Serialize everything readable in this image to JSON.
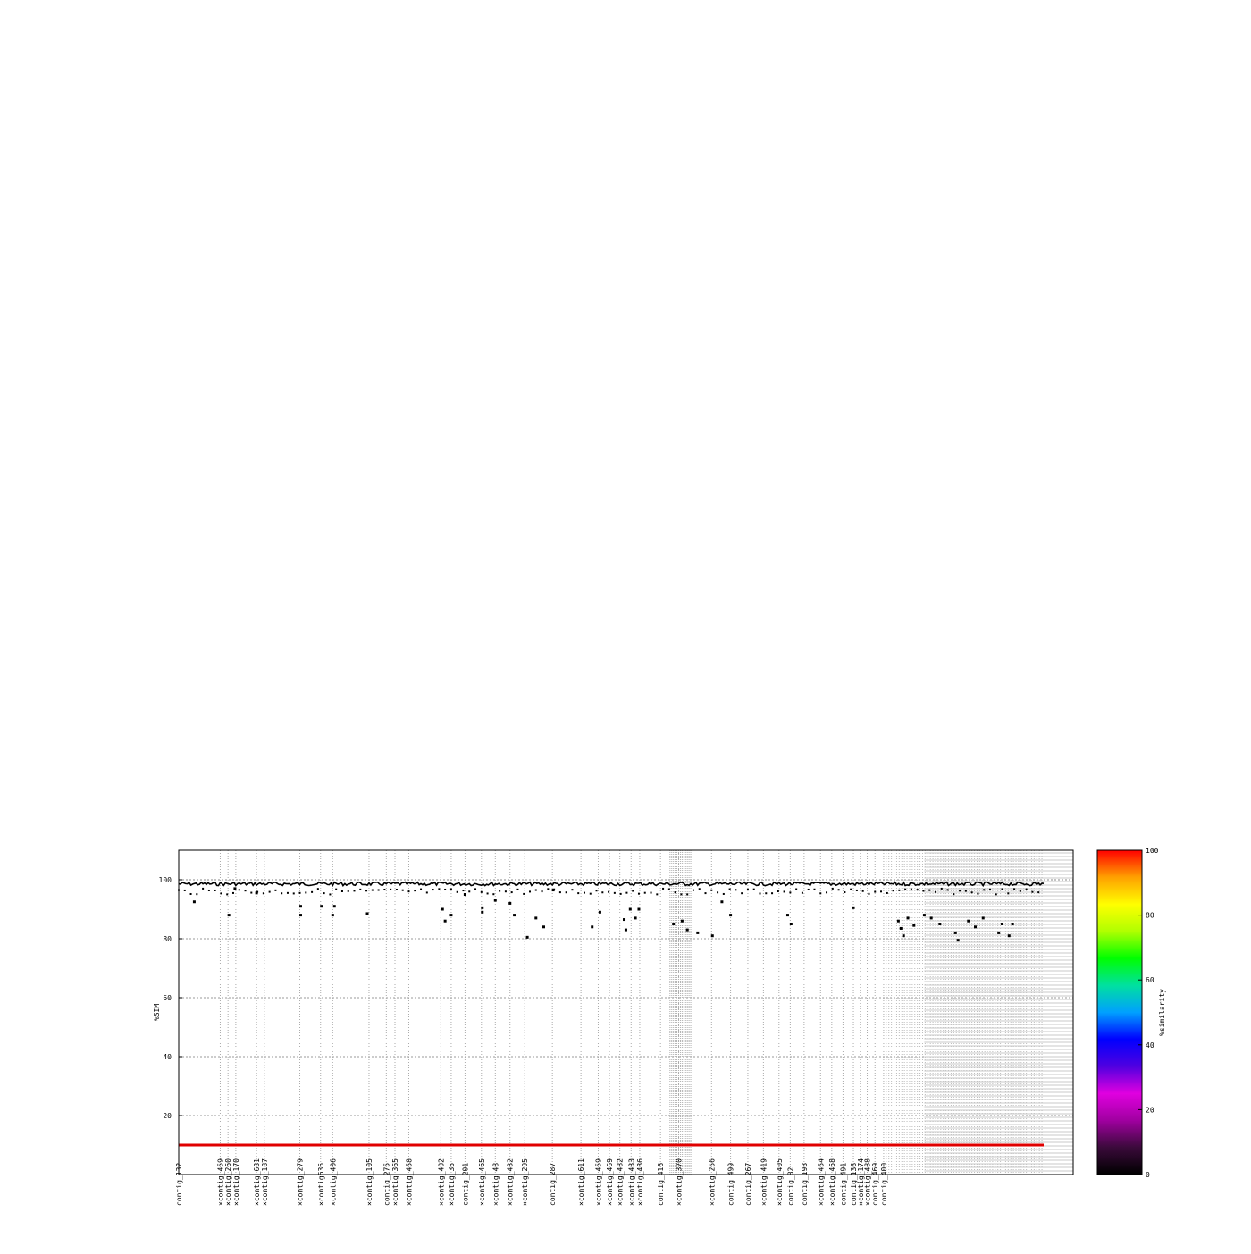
{
  "chart_data": {
    "type": "scatter",
    "title": "",
    "xlabel": "",
    "ylabel": "%SIM",
    "ylim": [
      0,
      110
    ],
    "yticks": [
      20,
      40,
      60,
      80,
      100
    ],
    "grid": true,
    "reference_line": {
      "y": 100,
      "style": "dotted"
    },
    "threshold_line": {
      "y": 10,
      "color": "#e00000"
    },
    "colorbar": {
      "label": "%similarity",
      "ticks": [
        0,
        20,
        40,
        60,
        80,
        100
      ],
      "stops": [
        "#000000",
        "#3a0a3a",
        "#a000a0",
        "#e000e0",
        "#5000e0",
        "#0000ff",
        "#00a0ff",
        "#00e0a0",
        "#00ff00",
        "#b0ff00",
        "#ffff00",
        "#ffa000",
        "#ff0000"
      ]
    },
    "x_axis_max": 1000,
    "contig_labels": [
      {
        "x": 0,
        "label": "contig_132"
      },
      {
        "x": 48,
        "label": "×contig_459"
      },
      {
        "x": 57,
        "label": "×contig_260"
      },
      {
        "x": 66,
        "label": "×contig_170"
      },
      {
        "x": 90,
        "label": "×contig_631"
      },
      {
        "x": 99,
        "label": "×contig_187"
      },
      {
        "x": 140,
        "label": "×contig_279"
      },
      {
        "x": 164,
        "label": "×contig635"
      },
      {
        "x": 178,
        "label": "×contig_406"
      },
      {
        "x": 220,
        "label": "×contig_105"
      },
      {
        "x": 240,
        "label": "contig_275"
      },
      {
        "x": 250,
        "label": "×contig_365"
      },
      {
        "x": 266,
        "label": "×contig_458"
      },
      {
        "x": 303,
        "label": "×contig_402"
      },
      {
        "x": 315,
        "label": "×contig_35"
      },
      {
        "x": 331,
        "label": "contig_201"
      },
      {
        "x": 350,
        "label": "×contig_465"
      },
      {
        "x": 366,
        "label": "×contig_48"
      },
      {
        "x": 383,
        "label": "×contig_432"
      },
      {
        "x": 400,
        "label": "×contig_295"
      },
      {
        "x": 432,
        "label": "contig_287"
      },
      {
        "x": 465,
        "label": "×contig_611"
      },
      {
        "x": 485,
        "label": "×contig_459"
      },
      {
        "x": 498,
        "label": "×contig_469"
      },
      {
        "x": 510,
        "label": "×contig_482"
      },
      {
        "x": 523,
        "label": "×contig_433"
      },
      {
        "x": 533,
        "label": "×contig_436"
      },
      {
        "x": 557,
        "label": "contig_416"
      },
      {
        "x": 578,
        "label": "×contig_370"
      },
      {
        "x": 616,
        "label": "×contig_256"
      },
      {
        "x": 638,
        "label": "contig_499"
      },
      {
        "x": 658,
        "label": "contig_267"
      },
      {
        "x": 676,
        "label": "×contig_419"
      },
      {
        "x": 694,
        "label": "×contig_405"
      },
      {
        "x": 707,
        "label": "contig_82"
      },
      {
        "x": 723,
        "label": "contig_193"
      },
      {
        "x": 742,
        "label": "×contig_454"
      },
      {
        "x": 755,
        "label": "×contig_458"
      },
      {
        "x": 768,
        "label": "contig_491"
      },
      {
        "x": 780,
        "label": "contig_138"
      },
      {
        "x": 788,
        "label": "×contig_174"
      },
      {
        "x": 796,
        "label": "×contig_488"
      },
      {
        "x": 805,
        "label": "contig_469"
      },
      {
        "x": 815,
        "label": "contig_400"
      }
    ],
    "series": [
      {
        "points": [
          [
            18,
            92.5
          ],
          [
            58,
            88
          ],
          [
            65,
            97
          ],
          [
            90,
            95.5
          ],
          [
            141,
            91
          ],
          [
            141,
            88
          ],
          [
            165,
            91
          ],
          [
            178,
            88
          ],
          [
            180,
            91
          ],
          [
            218,
            88.5
          ],
          [
            305,
            90
          ],
          [
            308,
            86
          ],
          [
            315,
            88
          ],
          [
            331,
            95
          ],
          [
            351,
            90.5
          ],
          [
            351,
            89
          ],
          [
            366,
            93
          ],
          [
            383,
            92
          ],
          [
            388,
            88
          ],
          [
            403,
            80.5
          ],
          [
            413,
            87
          ],
          [
            422,
            84
          ],
          [
            433,
            96.5
          ],
          [
            478,
            84
          ],
          [
            487,
            89
          ],
          [
            515,
            86.5
          ],
          [
            517,
            83
          ],
          [
            522,
            90
          ],
          [
            528,
            87
          ],
          [
            532,
            90
          ],
          [
            572,
            85
          ],
          [
            582,
            86
          ],
          [
            588,
            83
          ],
          [
            600,
            82
          ],
          [
            617,
            81
          ],
          [
            628,
            92.5
          ],
          [
            638,
            88
          ],
          [
            704,
            88
          ],
          [
            708,
            85
          ],
          [
            780,
            90.5
          ],
          [
            832,
            86
          ],
          [
            835,
            83.5
          ],
          [
            838,
            81
          ],
          [
            843,
            87
          ],
          [
            850,
            84.5
          ],
          [
            862,
            88
          ],
          [
            870,
            87
          ],
          [
            880,
            85
          ],
          [
            898,
            82
          ],
          [
            901,
            79.5
          ],
          [
            913,
            86
          ],
          [
            921,
            84
          ],
          [
            930,
            87
          ],
          [
            948,
            82
          ],
          [
            952,
            85
          ],
          [
            960,
            81
          ],
          [
            964,
            85
          ]
        ]
      }
    ]
  }
}
